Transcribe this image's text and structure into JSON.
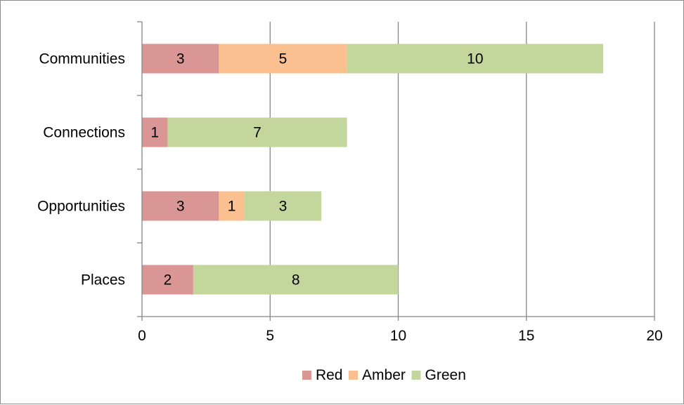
{
  "chart_data": {
    "type": "bar",
    "orientation": "horizontal",
    "stacked": true,
    "title": "",
    "xlabel": "",
    "ylabel": "",
    "categories": [
      "Communities",
      "Connections",
      "Opportunities",
      "Places"
    ],
    "series": [
      {
        "name": "Red",
        "color": "#d99694",
        "values": [
          3,
          1,
          3,
          2
        ]
      },
      {
        "name": "Amber",
        "color": "#fac090",
        "values": [
          5,
          0,
          1,
          0
        ]
      },
      {
        "name": "Green",
        "color": "#c3d69b",
        "values": [
          10,
          7,
          3,
          8
        ]
      }
    ],
    "xlim": [
      0,
      20
    ],
    "xticks": [
      "0",
      "5",
      "10",
      "15",
      "20"
    ],
    "grid": "vertical",
    "legend_position": "bottom"
  }
}
